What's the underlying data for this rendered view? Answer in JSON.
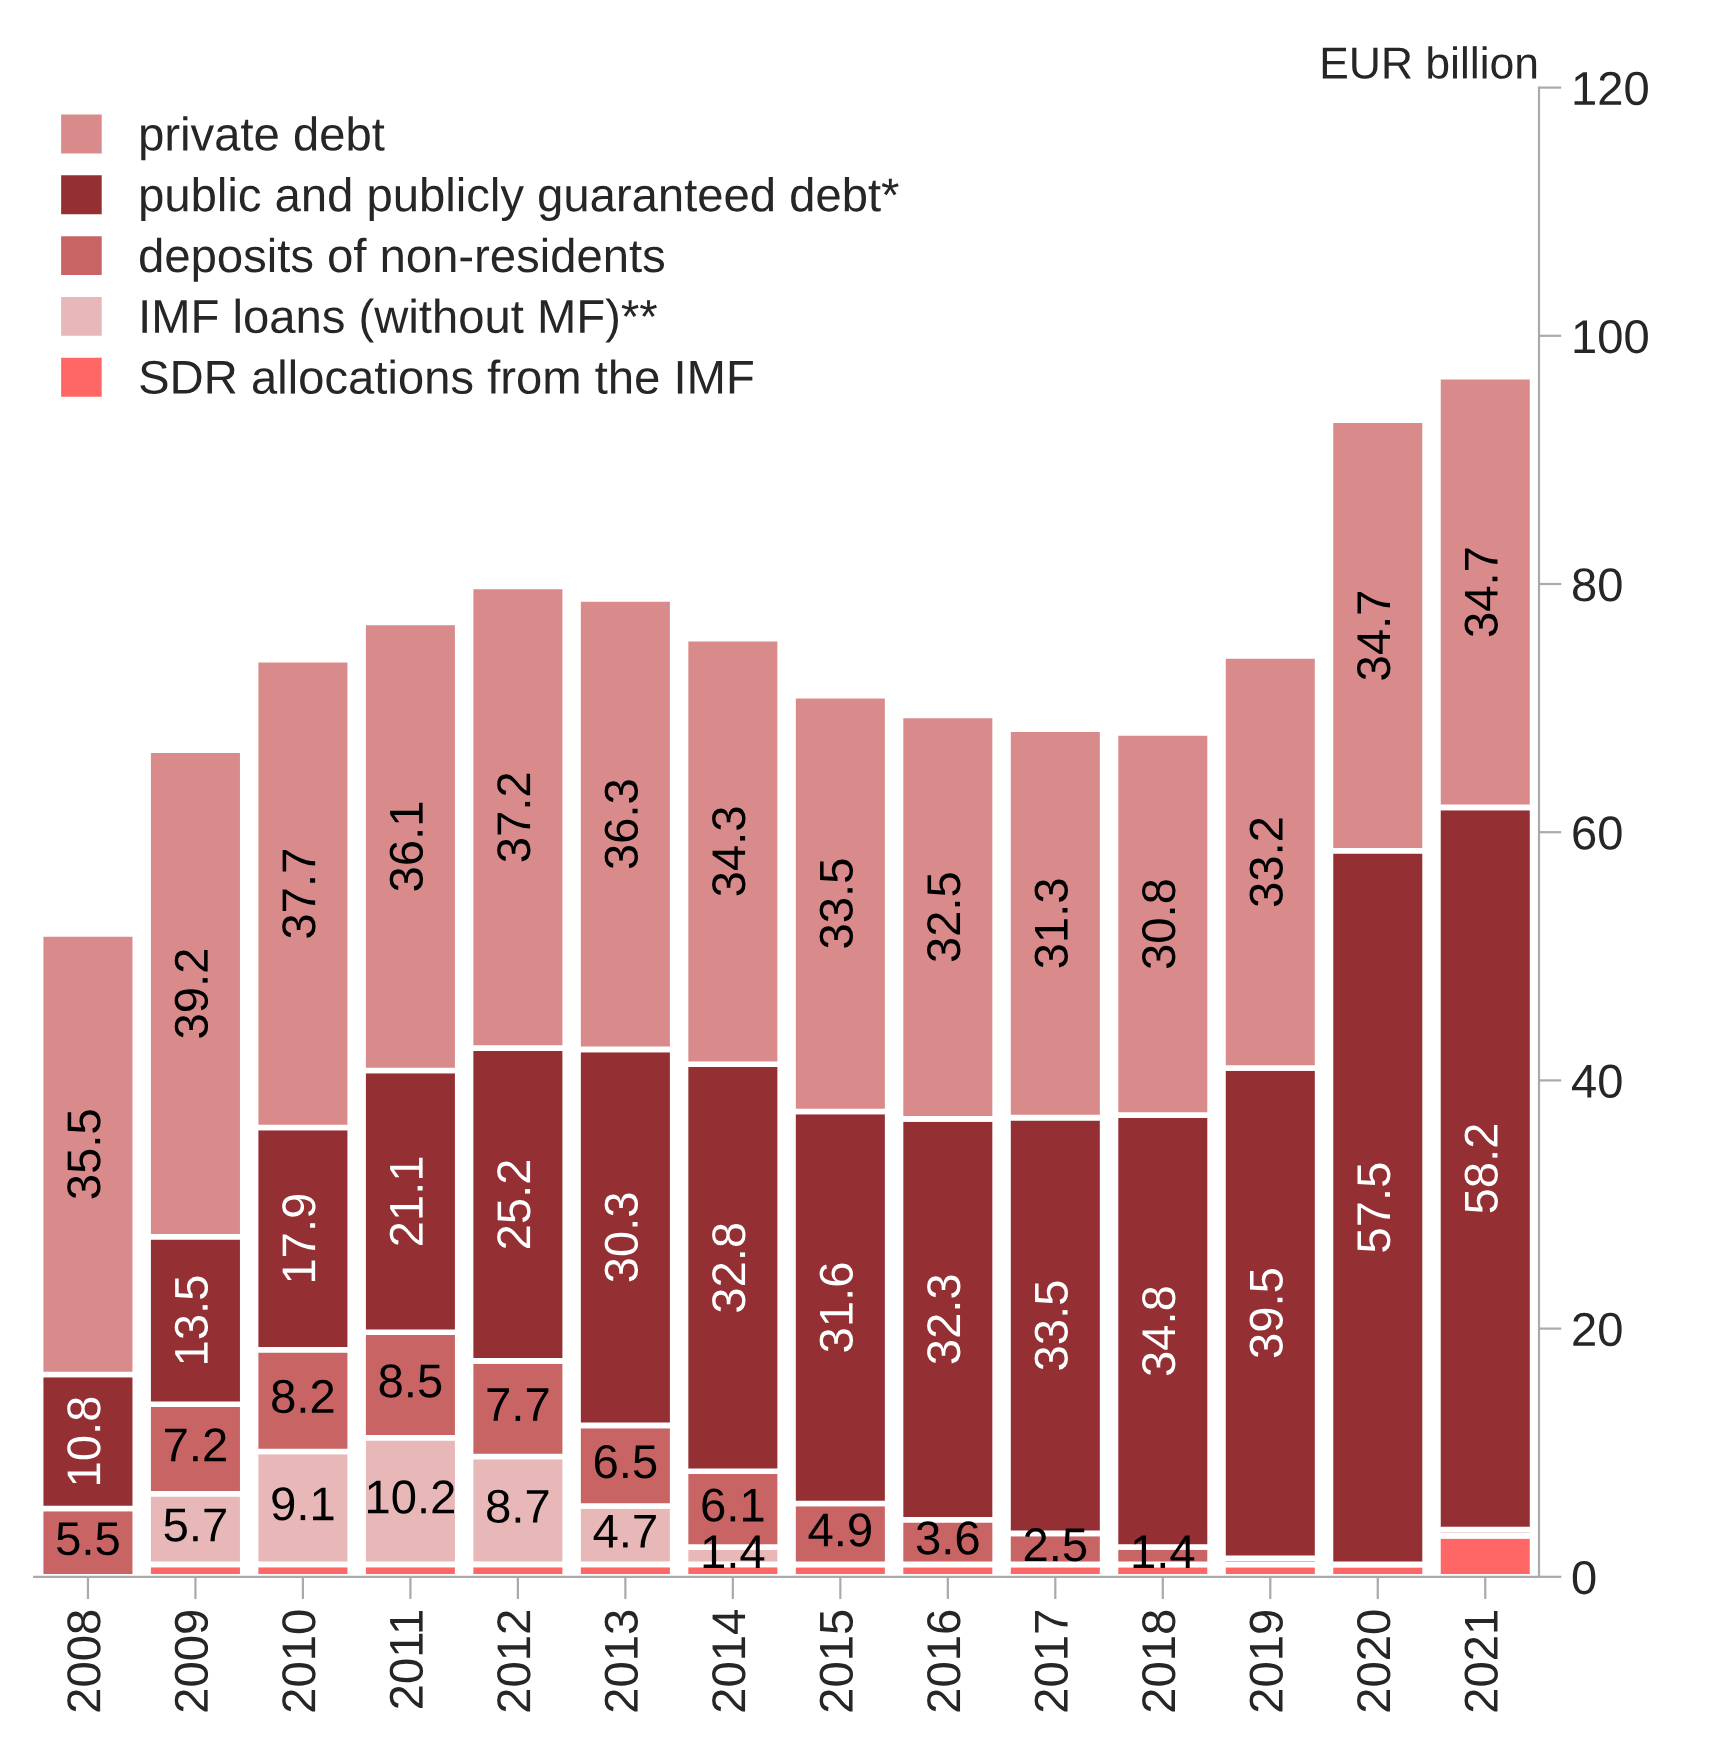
{
  "chart_data": {
    "type": "bar",
    "stacked": true,
    "ylabel": "EUR billion",
    "categories": [
      "2008",
      "2009",
      "2010",
      "2011",
      "2012",
      "2013",
      "2014",
      "2015",
      "2016",
      "2017",
      "2018",
      "2019",
      "2020",
      "2021"
    ],
    "series": [
      {
        "name": "SDR allocations from the IMF",
        "color": "#ff6666",
        "values": [
          0,
          1.0,
          1.0,
          1.0,
          1.0,
          1.0,
          1.0,
          1.0,
          1.0,
          1.0,
          1.0,
          1.0,
          1.0,
          3.3
        ],
        "value_labels": [
          null,
          null,
          null,
          null,
          null,
          null,
          null,
          null,
          null,
          null,
          null,
          null,
          null,
          null
        ]
      },
      {
        "name": "IMF loans (without MF)**",
        "color": "#e8b8b8",
        "values": [
          0,
          5.7,
          9.1,
          10.2,
          8.7,
          4.7,
          1.4,
          0,
          0,
          0,
          0,
          0,
          0,
          0
        ],
        "value_labels": [
          null,
          "5.7",
          "9.1",
          "10.2",
          "8.7",
          "4.7",
          "1.4",
          null,
          null,
          null,
          null,
          null,
          null,
          null
        ]
      },
      {
        "name": "deposits of non-residents",
        "color": "#c86464",
        "values": [
          5.5,
          7.2,
          8.2,
          8.5,
          7.7,
          6.5,
          6.1,
          4.9,
          3.6,
          2.5,
          1.4,
          0.5,
          0,
          0.5
        ],
        "value_labels": [
          "5.5",
          "7.2",
          "8.2",
          "8.5",
          "7.7",
          "6.5",
          "6.1",
          "4.9",
          "3.6",
          "2.5",
          "1.4",
          null,
          null,
          null
        ]
      },
      {
        "name": "public and publicly guaranteed debt*",
        "color": "#943034",
        "values": [
          10.8,
          13.5,
          17.9,
          21.1,
          25.2,
          30.3,
          32.8,
          31.6,
          32.3,
          33.5,
          34.8,
          39.5,
          57.5,
          58.2
        ],
        "value_labels": [
          "10.8",
          "13.5",
          "17.9",
          "21.1",
          "25.2",
          "30.3",
          "32.8",
          "31.6",
          "32.3",
          "33.5",
          "34.8",
          "39.5",
          "57.5",
          "58.2"
        ]
      },
      {
        "name": "private debt",
        "color": "#d98a8a",
        "values": [
          35.5,
          39.2,
          37.7,
          36.1,
          37.2,
          36.3,
          34.3,
          33.5,
          32.5,
          31.3,
          30.8,
          33.2,
          34.7,
          34.7
        ],
        "value_labels": [
          "35.5",
          "39.2",
          "37.7",
          "36.1",
          "37.2",
          "36.3",
          "34.3",
          "33.5",
          "32.5",
          "31.3",
          "30.8",
          "33.2",
          "34.7",
          "34.7"
        ]
      }
    ],
    "ylim": [
      0,
      120
    ],
    "yticks": [
      0,
      20,
      40,
      60,
      80,
      100,
      120
    ],
    "legend": "top left",
    "grid": false
  }
}
